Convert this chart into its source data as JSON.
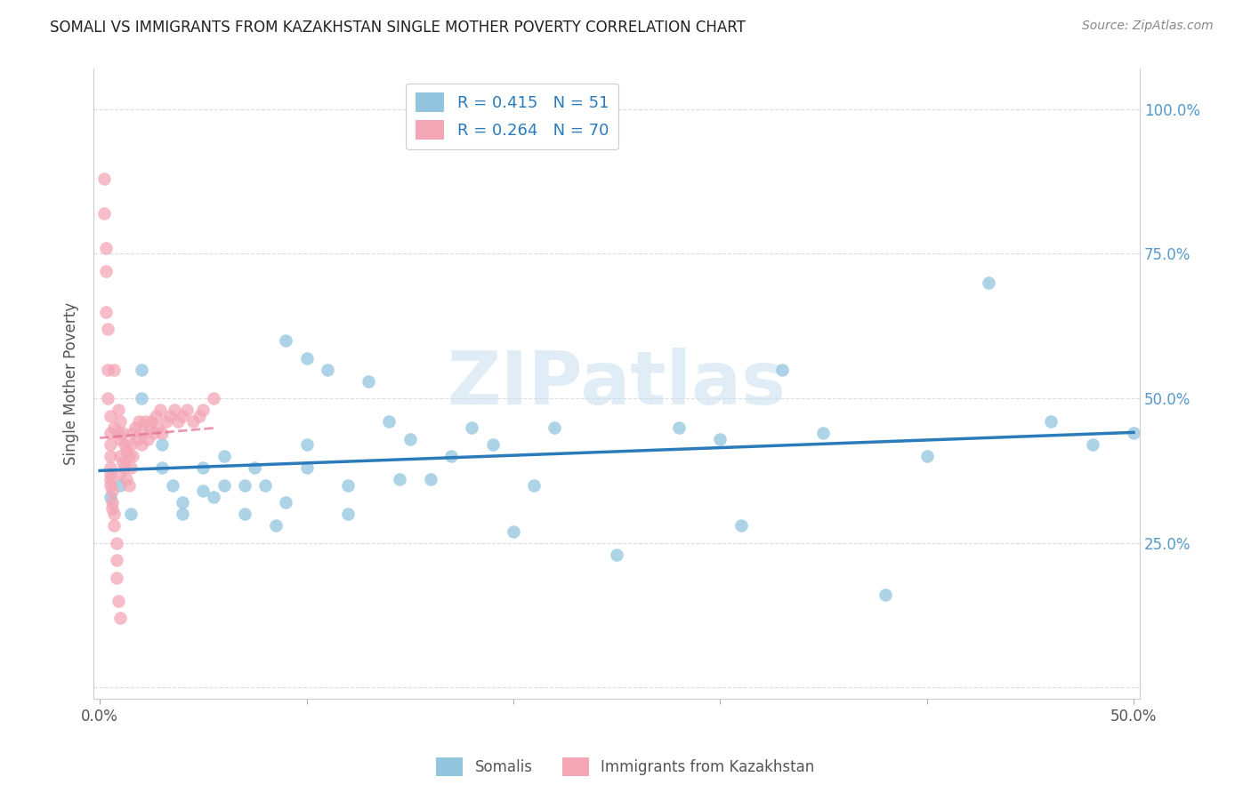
{
  "title": "SOMALI VS IMMIGRANTS FROM KAZAKHSTAN SINGLE MOTHER POVERTY CORRELATION CHART",
  "source": "Source: ZipAtlas.com",
  "ylabel": "Single Mother Poverty",
  "legend_blue_r": "R = 0.415",
  "legend_blue_n": "N = 51",
  "legend_pink_r": "R = 0.264",
  "legend_pink_n": "N = 70",
  "legend_label_blue": "Somalis",
  "legend_label_pink": "Immigrants from Kazakhstan",
  "blue_color": "#92c5de",
  "pink_color": "#f4a6b5",
  "blue_line_color": "#2b7bba",
  "pink_line_color": "#e07090",
  "watermark_color": "#c8dff0",
  "watermark": "ZIPatlas",
  "background_color": "#ffffff",
  "grid_color": "#dddddd",
  "right_tick_color": "#5599cc",
  "blue_x": [
    0.005,
    0.01,
    0.015,
    0.02,
    0.02,
    0.03,
    0.03,
    0.035,
    0.04,
    0.04,
    0.05,
    0.05,
    0.055,
    0.06,
    0.06,
    0.07,
    0.07,
    0.075,
    0.08,
    0.085,
    0.09,
    0.09,
    0.1,
    0.1,
    0.1,
    0.11,
    0.12,
    0.12,
    0.13,
    0.14,
    0.145,
    0.15,
    0.16,
    0.17,
    0.18,
    0.19,
    0.2,
    0.21,
    0.22,
    0.25,
    0.28,
    0.3,
    0.31,
    0.33,
    0.35,
    0.38,
    0.4,
    0.43,
    0.46,
    0.48,
    0.5
  ],
  "blue_y": [
    0.33,
    0.35,
    0.3,
    0.55,
    0.5,
    0.38,
    0.42,
    0.35,
    0.32,
    0.3,
    0.34,
    0.38,
    0.33,
    0.35,
    0.4,
    0.35,
    0.3,
    0.38,
    0.35,
    0.28,
    0.32,
    0.6,
    0.42,
    0.38,
    0.57,
    0.55,
    0.35,
    0.3,
    0.53,
    0.46,
    0.36,
    0.43,
    0.36,
    0.4,
    0.45,
    0.42,
    0.27,
    0.35,
    0.45,
    0.23,
    0.45,
    0.43,
    0.28,
    0.55,
    0.44,
    0.16,
    0.4,
    0.7,
    0.46,
    0.42,
    0.44
  ],
  "pink_x": [
    0.002,
    0.002,
    0.003,
    0.003,
    0.003,
    0.004,
    0.004,
    0.004,
    0.005,
    0.005,
    0.005,
    0.005,
    0.005,
    0.005,
    0.005,
    0.005,
    0.006,
    0.006,
    0.006,
    0.007,
    0.007,
    0.007,
    0.007,
    0.008,
    0.008,
    0.008,
    0.009,
    0.009,
    0.009,
    0.01,
    0.01,
    0.01,
    0.01,
    0.01,
    0.011,
    0.011,
    0.012,
    0.012,
    0.013,
    0.013,
    0.014,
    0.014,
    0.015,
    0.015,
    0.016,
    0.016,
    0.017,
    0.018,
    0.019,
    0.02,
    0.021,
    0.022,
    0.023,
    0.024,
    0.025,
    0.026,
    0.027,
    0.028,
    0.029,
    0.03,
    0.032,
    0.034,
    0.036,
    0.038,
    0.04,
    0.042,
    0.045,
    0.048,
    0.05,
    0.055
  ],
  "pink_y": [
    0.88,
    0.82,
    0.76,
    0.72,
    0.65,
    0.62,
    0.55,
    0.5,
    0.47,
    0.44,
    0.42,
    0.4,
    0.38,
    0.37,
    0.36,
    0.35,
    0.34,
    0.32,
    0.31,
    0.3,
    0.55,
    0.45,
    0.28,
    0.25,
    0.22,
    0.19,
    0.48,
    0.44,
    0.15,
    0.46,
    0.43,
    0.4,
    0.37,
    0.12,
    0.44,
    0.39,
    0.42,
    0.38,
    0.41,
    0.36,
    0.4,
    0.35,
    0.42,
    0.38,
    0.44,
    0.4,
    0.45,
    0.43,
    0.46,
    0.42,
    0.44,
    0.46,
    0.43,
    0.45,
    0.46,
    0.44,
    0.47,
    0.45,
    0.48,
    0.44,
    0.46,
    0.47,
    0.48,
    0.46,
    0.47,
    0.48,
    0.46,
    0.47,
    0.48,
    0.5
  ],
  "xlim": [
    -0.003,
    0.503
  ],
  "ylim": [
    -0.02,
    1.07
  ],
  "yticks": [
    0.0,
    0.25,
    0.5,
    0.75,
    1.0
  ],
  "ytick_labels_right": [
    "",
    "25.0%",
    "50.0%",
    "75.0%",
    "100.0%"
  ]
}
